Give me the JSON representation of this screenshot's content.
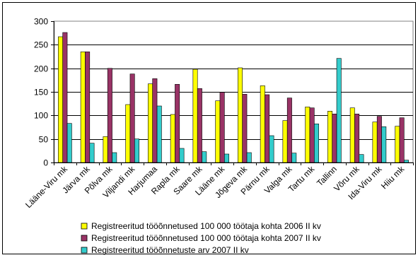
{
  "chart_data": {
    "type": "bar",
    "title": "",
    "xlabel": "",
    "ylabel": "",
    "ylim": [
      0,
      300
    ],
    "yticks": [
      0,
      50,
      100,
      150,
      200,
      250,
      300
    ],
    "grid": true,
    "legend_position": "bottom",
    "categories": [
      "Lääne-Viru mk",
      "Järva mk",
      "Põlva mk",
      "Viljandi mk",
      "Harjumaa",
      "Rapla mk",
      "Saare mk",
      "Lääne mk",
      "Jõgeva mk",
      "Pärnu mk",
      "Valga mk",
      "Tartu mk",
      "Tallinn",
      "Võru mk",
      "Ida-Viru mk",
      "Hiiu mk"
    ],
    "series": [
      {
        "name": "Registreeritud tööõnnetused 100 000 töötaja kohta 2006 II kv",
        "color": "#FFFF00",
        "values": [
          267,
          235,
          55,
          123,
          167,
          102,
          198,
          131,
          201,
          163,
          89,
          118,
          109,
          116,
          86,
          77
        ]
      },
      {
        "name": "Registreeritud tööõnnetused 100 000 töötaja kohta 2007 II kv",
        "color": "#993366",
        "values": [
          276,
          235,
          200,
          188,
          178,
          166,
          157,
          149,
          145,
          144,
          137,
          116,
          103,
          103,
          98,
          95
        ]
      },
      {
        "name": "Registreeritud tööõnnetuste arv 2007 II kv",
        "color": "#33CCCC",
        "values": [
          83,
          41,
          21,
          50,
          120,
          30,
          23,
          18,
          21,
          57,
          20,
          82,
          221,
          17,
          76,
          5
        ]
      }
    ]
  }
}
